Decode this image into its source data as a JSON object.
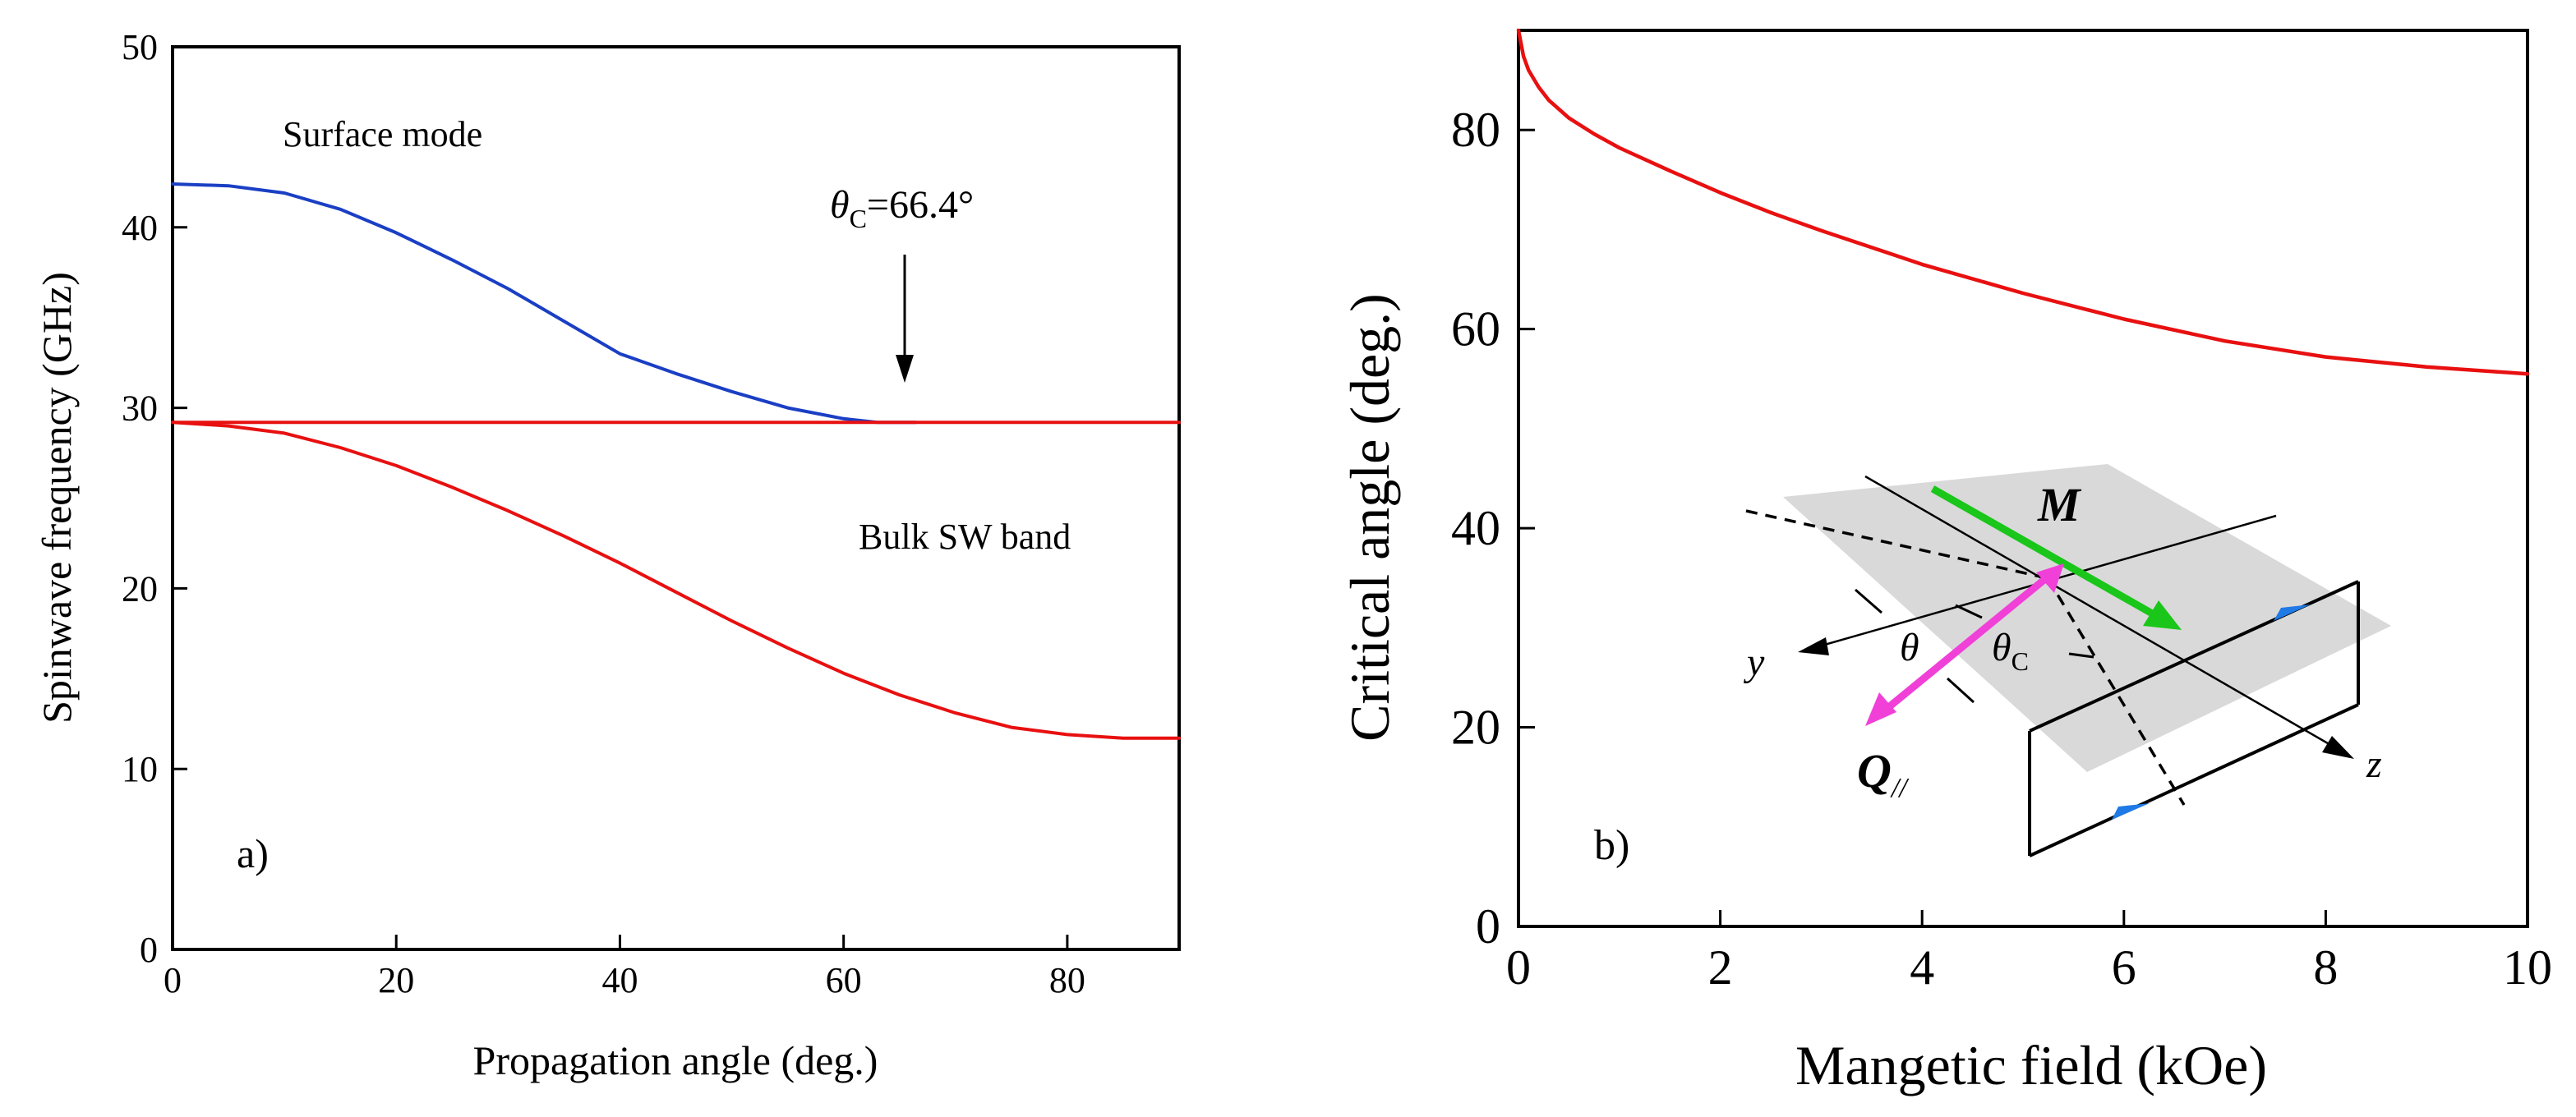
{
  "chart_data": [
    {
      "panel": "a)",
      "type": "line",
      "xlabel": "Propagation angle (deg.)",
      "ylabel": "Spinwave frequency (GHz)",
      "xlim": [
        0,
        90
      ],
      "ylim": [
        0,
        50
      ],
      "xticks": [
        0,
        20,
        40,
        60,
        80
      ],
      "yticks": [
        0,
        10,
        20,
        30,
        40,
        50
      ],
      "annotations": {
        "surface": "Surface mode",
        "bulk": "Bulk SW band",
        "critical_symbol": "θ",
        "critical_sub": "C",
        "critical_value": "=66.4°"
      },
      "critical_angle": 66.4,
      "series": [
        {
          "name": "Surface mode",
          "color": "#1a3fc4",
          "x": [
            0,
            5,
            10,
            15,
            20,
            25,
            30,
            35,
            40,
            45,
            50,
            55,
            60,
            63,
            66.4
          ],
          "y": [
            42.4,
            42.3,
            41.9,
            41.0,
            39.7,
            38.2,
            36.6,
            34.8,
            33.0,
            31.9,
            30.9,
            30.0,
            29.4,
            29.2,
            29.2
          ]
        },
        {
          "name": "Bulk SW upper edge",
          "color": "#e81010",
          "x": [
            0,
            90
          ],
          "y": [
            29.2,
            29.2
          ]
        },
        {
          "name": "Bulk SW lower edge",
          "color": "#e81010",
          "x": [
            0,
            5,
            10,
            15,
            20,
            25,
            30,
            35,
            40,
            45,
            50,
            55,
            60,
            65,
            70,
            75,
            80,
            85,
            90
          ],
          "y": [
            29.2,
            29.0,
            28.6,
            27.8,
            26.8,
            25.6,
            24.3,
            22.9,
            21.4,
            19.8,
            18.2,
            16.7,
            15.3,
            14.1,
            13.1,
            12.3,
            11.9,
            11.7,
            11.7
          ]
        }
      ]
    },
    {
      "panel": "b)",
      "type": "line",
      "xlabel": "Mangetic field (kOe)",
      "ylabel": "Critical angle (deg.)",
      "xlim": [
        0,
        10
      ],
      "ylim": [
        0,
        90
      ],
      "xticks": [
        0,
        2,
        4,
        6,
        8,
        10
      ],
      "yticks": [
        0,
        20,
        40,
        60,
        80
      ],
      "inset_labels": {
        "M": "M",
        "Q": "Q",
        "Q_sub": "//",
        "y_axis": "y",
        "z_axis": "z",
        "theta": "θ",
        "theta_c": "θ",
        "theta_c_sub": "C"
      },
      "series": [
        {
          "name": "Critical angle",
          "color": "#e81010",
          "x": [
            0,
            0.05,
            0.1,
            0.2,
            0.3,
            0.5,
            0.75,
            1,
            1.5,
            2,
            2.5,
            3,
            4,
            5,
            6,
            7,
            8,
            9,
            10
          ],
          "y": [
            90,
            87.4,
            86.0,
            84.3,
            83.0,
            81.2,
            79.6,
            78.2,
            75.9,
            73.7,
            71.7,
            69.9,
            66.5,
            63.6,
            61.0,
            58.8,
            57.2,
            56.2,
            55.5
          ]
        }
      ]
    }
  ]
}
